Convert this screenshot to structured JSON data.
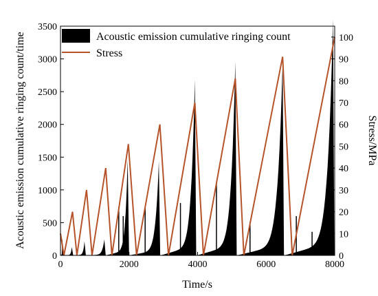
{
  "chart_data": {
    "type": "bar+line",
    "xlabel": "Time/s",
    "ylabel_left": "Acoustic emission cumulative ringing count/time",
    "ylabel_right": "Stress/MPa",
    "xlim": [
      0,
      8000
    ],
    "xticks": [
      0,
      2000,
      4000,
      6000,
      8000
    ],
    "ylim_left": [
      0,
      3500
    ],
    "yticks_left": [
      0,
      500,
      1000,
      1500,
      2000,
      2500,
      3000,
      3500
    ],
    "ylim_right": [
      0,
      105
    ],
    "yticks_right": [
      0,
      10,
      20,
      30,
      40,
      50,
      60,
      70,
      80,
      90,
      100
    ],
    "legend_position": "top-left",
    "series": [
      {
        "name": "Acoustic emission cumulative ringing count",
        "type": "bar",
        "color": "#000000",
        "cycles": [
          {
            "start": 0,
            "peak_time": 50,
            "peak": 250
          },
          {
            "start": 100,
            "peak_time": 330,
            "peak": 120
          },
          {
            "start": 380,
            "peak_time": 700,
            "peak": 200
          },
          {
            "start": 750,
            "peak_time": 1280,
            "peak": 230
          },
          {
            "start": 1320,
            "peak_time": 1960,
            "peak": 1380
          },
          {
            "start": 2000,
            "peak_time": 2870,
            "peak": 1360
          },
          {
            "start": 2920,
            "peak_time": 3920,
            "peak": 2530
          },
          {
            "start": 3980,
            "peak_time": 5100,
            "peak": 2790
          },
          {
            "start": 5150,
            "peak_time": 6480,
            "peak": 2770
          },
          {
            "start": 6530,
            "peak_time": 7950,
            "peak": 3400
          }
        ],
        "spikes": [
          {
            "x": 1700,
            "y": 740
          },
          {
            "x": 1830,
            "y": 600
          },
          {
            "x": 2470,
            "y": 730
          },
          {
            "x": 3500,
            "y": 800
          },
          {
            "x": 4550,
            "y": 1100
          },
          {
            "x": 5530,
            "y": 510
          },
          {
            "x": 6880,
            "y": 600
          },
          {
            "x": 7340,
            "y": 360
          }
        ]
      },
      {
        "name": "Stress",
        "type": "line",
        "color": "#b5532a",
        "x": [
          0,
          100,
          350,
          480,
          760,
          920,
          1320,
          1500,
          1980,
          2220,
          2900,
          3150,
          3920,
          4170,
          5100,
          5350,
          6480,
          6760,
          8000
        ],
        "y": [
          10,
          0,
          20,
          0,
          30,
          0,
          40,
          0,
          51,
          0,
          60,
          0,
          70,
          0,
          81,
          0,
          91,
          0,
          100
        ]
      }
    ]
  }
}
